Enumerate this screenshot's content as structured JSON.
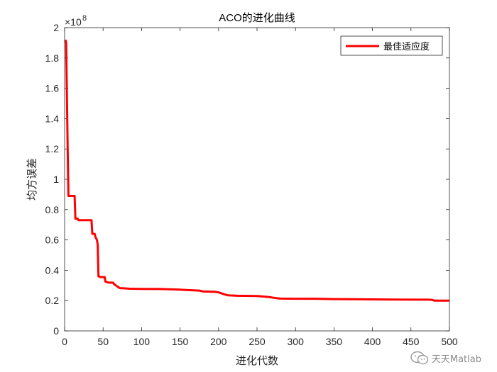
{
  "chart_data": {
    "type": "line",
    "title": "ACO的进化曲线",
    "xlabel": "进化代数",
    "ylabel": "均方误差",
    "xlim": [
      0,
      500
    ],
    "ylim": [
      0,
      2
    ],
    "y_exponent_label": "×10",
    "y_exponent": "8",
    "x_ticks": [
      0,
      50,
      100,
      150,
      200,
      250,
      300,
      350,
      400,
      450,
      500
    ],
    "y_ticks": [
      0,
      0.2,
      0.4,
      0.6,
      0.8,
      1,
      1.2,
      1.4,
      1.6,
      1.8,
      2
    ],
    "x_tick_labels": [
      "0",
      "50",
      "100",
      "150",
      "200",
      "250",
      "300",
      "350",
      "400",
      "450",
      "500"
    ],
    "y_tick_labels": [
      "0",
      "0.2",
      "0.4",
      "0.6",
      "0.8",
      "1",
      "1.2",
      "1.4",
      "1.6",
      "1.8",
      "2"
    ],
    "grid": false,
    "legend_position": "top-right",
    "series": [
      {
        "name": "最佳适应度",
        "color": "#ff0000",
        "x": [
          1,
          2,
          4,
          5,
          6,
          13,
          14,
          17,
          18,
          35,
          36,
          37,
          39,
          40,
          42,
          43,
          44,
          45,
          46,
          52,
          53,
          56,
          57,
          63,
          64,
          68,
          72,
          75,
          85,
          100,
          125,
          150,
          175,
          180,
          195,
          200,
          208,
          212,
          225,
          250,
          265,
          275,
          280,
          300,
          325,
          350,
          400,
          425,
          450,
          472,
          478,
          480,
          500
        ],
        "values": [
          1.92,
          1.9,
          1.2,
          0.89,
          0.89,
          0.89,
          0.74,
          0.74,
          0.73,
          0.73,
          0.64,
          0.64,
          0.64,
          0.62,
          0.6,
          0.57,
          0.36,
          0.36,
          0.355,
          0.355,
          0.325,
          0.32,
          0.318,
          0.318,
          0.31,
          0.295,
          0.282,
          0.282,
          0.278,
          0.277,
          0.276,
          0.272,
          0.266,
          0.26,
          0.258,
          0.254,
          0.24,
          0.235,
          0.232,
          0.23,
          0.224,
          0.216,
          0.213,
          0.212,
          0.212,
          0.21,
          0.208,
          0.207,
          0.206,
          0.206,
          0.204,
          0.2,
          0.2
        ]
      }
    ]
  },
  "watermark": {
    "icon": "wechat-icon",
    "text": "天天Matlab"
  }
}
